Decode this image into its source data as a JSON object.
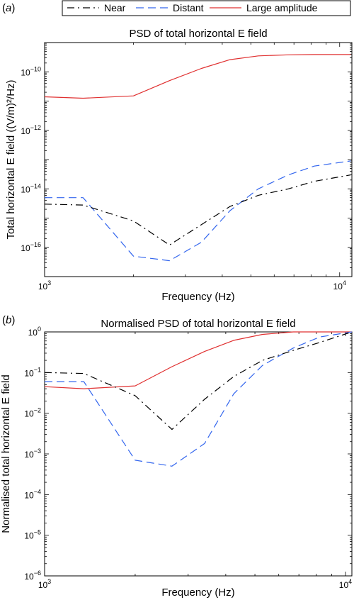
{
  "legend": {
    "entries": [
      {
        "label": "Near",
        "color": "#000000",
        "style": "dash-dot"
      },
      {
        "label": "Distant",
        "color": "#3366ee",
        "style": "dashed"
      },
      {
        "label": "Large amplitude",
        "color": "#e03030",
        "style": "solid"
      }
    ],
    "placement": "top"
  },
  "chart_data": [
    {
      "panel_label": "(a)",
      "type": "line",
      "title": "PSD of total horizontal E field",
      "xlabel": "Frequency (Hz)",
      "ylabel": "Total horizontal E field ((V/m)²/Hz)",
      "xscale": "log",
      "yscale": "log",
      "xlim": [
        1000,
        11000
      ],
      "ylim": [
        1e-17,
        1e-09
      ],
      "xticks": [
        {
          "value": 1000,
          "label": "10",
          "exp": "3"
        },
        {
          "value": 10000,
          "label": "10",
          "exp": "4"
        }
      ],
      "yticks": [
        {
          "value": 1e-10,
          "label": "10",
          "exp": "−10"
        },
        {
          "value": 1e-12,
          "label": "10",
          "exp": "−12"
        },
        {
          "value": 1e-14,
          "label": "10",
          "exp": "−14"
        },
        {
          "value": 1e-16,
          "label": "10",
          "exp": "−16"
        }
      ],
      "grid": false,
      "series": [
        {
          "name": "Near",
          "x": [
            1000,
            1350,
            2000,
            2650,
            3400,
            4250,
            5300,
            6700,
            8200,
            10900
          ],
          "values": [
            3e-15,
            2.8e-15,
            8e-16,
            1.2e-16,
            6e-16,
            2.5e-15,
            6e-15,
            1e-14,
            1.8e-14,
            3e-14
          ]
        },
        {
          "name": "Distant",
          "x": [
            1000,
            1350,
            2000,
            2650,
            3400,
            4250,
            5300,
            6700,
            8200,
            10900
          ],
          "values": [
            5e-15,
            5e-15,
            5e-17,
            3.5e-17,
            1.5e-16,
            1.8e-15,
            1e-14,
            3e-14,
            6e-14,
            9e-14
          ]
        },
        {
          "name": "Large amplitude",
          "x": [
            1000,
            1350,
            2000,
            2650,
            3400,
            4250,
            5300,
            6700,
            8200,
            10900
          ],
          "values": [
            1.4e-11,
            1.25e-11,
            1.5e-11,
            5e-11,
            1.3e-10,
            2.6e-10,
            3.5e-10,
            3.8e-10,
            3.9e-10,
            3.9e-10
          ]
        }
      ]
    },
    {
      "panel_label": "(b)",
      "type": "line",
      "title": "Normalised PSD of total horizontal E field",
      "xlabel": "Frequency (Hz)",
      "ylabel": "Normalised total horizontal E field",
      "xscale": "log",
      "yscale": "log",
      "xlim": [
        1000,
        10500
      ],
      "ylim": [
        1e-06,
        1
      ],
      "xticks": [
        {
          "value": 1000,
          "label": "10",
          "exp": "3"
        },
        {
          "value": 10000,
          "label": "10",
          "exp": "4"
        }
      ],
      "yticks": [
        {
          "value": 1,
          "label": "10",
          "exp": "0"
        },
        {
          "value": 0.1,
          "label": "10",
          "exp": "−1"
        },
        {
          "value": 0.01,
          "label": "10",
          "exp": "−2"
        },
        {
          "value": 0.001,
          "label": "10",
          "exp": "−3"
        },
        {
          "value": 0.0001,
          "label": "10",
          "exp": "−4"
        },
        {
          "value": 1e-05,
          "label": "10",
          "exp": "−5"
        },
        {
          "value": 1e-06,
          "label": "10",
          "exp": "−6"
        }
      ],
      "grid": false,
      "series": [
        {
          "name": "Near",
          "x": [
            1000,
            1350,
            2000,
            2650,
            3400,
            4250,
            5300,
            6700,
            8200,
            10500
          ],
          "values": [
            0.1,
            0.095,
            0.027,
            0.004,
            0.022,
            0.08,
            0.2,
            0.35,
            0.55,
            1.0
          ]
        },
        {
          "name": "Distant",
          "x": [
            1000,
            1350,
            2000,
            2650,
            3400,
            4250,
            5300,
            6700,
            8200,
            10500
          ],
          "values": [
            0.06,
            0.06,
            0.0007,
            0.0005,
            0.0018,
            0.03,
            0.15,
            0.4,
            0.75,
            1.0
          ]
        },
        {
          "name": "Large amplitude",
          "x": [
            1000,
            1350,
            2000,
            2650,
            3400,
            4250,
            5300,
            6700,
            8200,
            10500
          ],
          "values": [
            0.045,
            0.04,
            0.047,
            0.14,
            0.33,
            0.62,
            0.87,
            1.0,
            1.0,
            1.0
          ]
        }
      ]
    }
  ]
}
